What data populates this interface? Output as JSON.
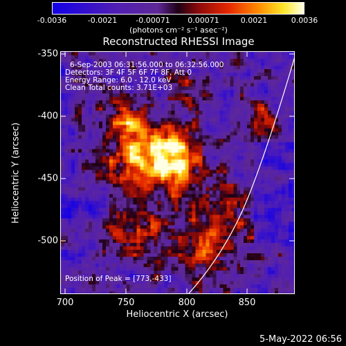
{
  "colorbar": {
    "ticks": [
      "-0.0036",
      "-0.0021",
      "-0.00071",
      "0.00071",
      "0.0021",
      "0.0036"
    ],
    "unit": "(photons cm⁻² s⁻¹ asec⁻²)"
  },
  "title": "Reconstructed RHESSI Image",
  "annotations": {
    "time": "6-Sep-2003 06:31:56.000 to 06:32:56.000",
    "detectors": "Detectors: 3F 4F 5F 6F 7F 8F, Att 0",
    "energy": "Energy Range: 6.0 - 12.0 keV",
    "clean": "Clean    Total counts: 3.71E+03",
    "peak": "Position of Peak = [773,-433]"
  },
  "axes": {
    "xlabel": "Heliocentric X (arcsec)",
    "ylabel": "Heliocentric Y (arcsec)",
    "xticks": [
      "700",
      "750",
      "800",
      "850"
    ],
    "yticks": [
      "-350",
      "-400",
      "-450",
      "-500"
    ]
  },
  "footer": {
    "date": "5-May-2022 06:56"
  }
}
